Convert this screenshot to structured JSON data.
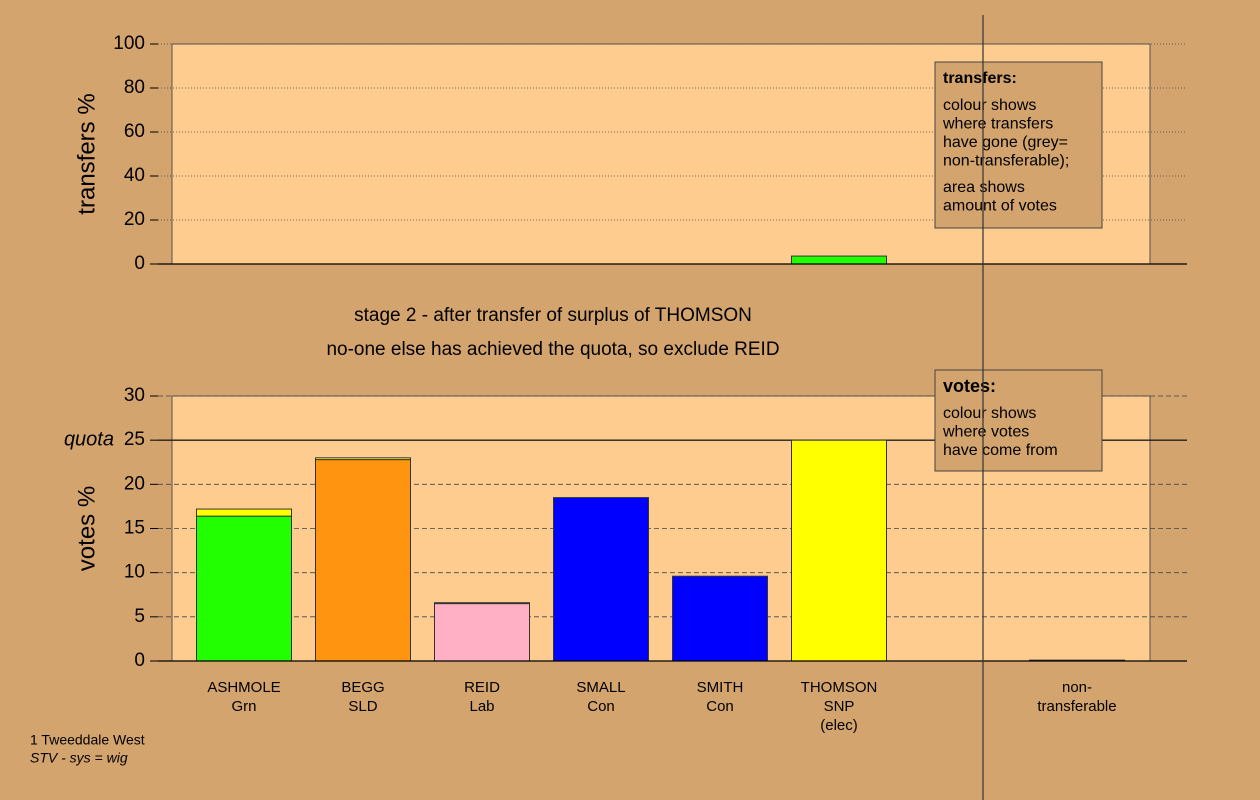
{
  "chart_data": [
    {
      "type": "bar",
      "ylabel": "transfers %",
      "ylim": [
        0,
        100
      ],
      "yticks": [
        0,
        20,
        40,
        60,
        80,
        100
      ],
      "grid": true,
      "series": [
        {
          "color": "#22ff00",
          "values": [
            0,
            0,
            0,
            0,
            0,
            3.6,
            null,
            0
          ]
        }
      ],
      "annotation": {
        "title": "transfers:",
        "paragraphs": [
          [
            "colour shows",
            "where transfers",
            "have gone (grey=",
            "non-transferable);"
          ],
          [
            "area shows",
            "amount of votes"
          ]
        ]
      }
    },
    {
      "type": "bar",
      "title": [
        "stage 2 - after transfer of surplus of THOMSON",
        "no-one else has achieved the quota, so exclude REID"
      ],
      "ylabel": "votes %",
      "ylim": [
        0,
        30
      ],
      "yticks": [
        0,
        5,
        10,
        15,
        20,
        25,
        30
      ],
      "grid": true,
      "quota": {
        "label": "quota",
        "value": 25
      },
      "categories": [
        [
          "ASHMOLE",
          "Grn"
        ],
        [
          "BEGG",
          "SLD"
        ],
        [
          "REID",
          "Lab"
        ],
        [
          "SMALL",
          "Con"
        ],
        [
          "SMITH",
          "Con"
        ],
        [
          "THOMSON",
          "SNP",
          "(elec)"
        ],
        null,
        [
          "non-",
          "transferable"
        ]
      ],
      "series": [
        {
          "colors": [
            "#22ff00",
            "#ff9410",
            "#ffb0c4",
            "#0000ff",
            "#0000ff",
            "#ffff00",
            null,
            "#808080"
          ],
          "values": [
            16.4,
            22.8,
            6.5,
            18.5,
            9.6,
            25,
            null,
            0.1
          ]
        },
        {
          "color": "#ffff00",
          "values": [
            0.8,
            0.2,
            0.1,
            0,
            0,
            0,
            null,
            0
          ]
        }
      ],
      "annotation": {
        "title": "votes:",
        "paragraphs": [
          [
            "colour shows",
            "where votes",
            "have come from"
          ]
        ]
      }
    }
  ],
  "footer": [
    "1 Tweeddale West",
    "STV - sys = wig"
  ]
}
